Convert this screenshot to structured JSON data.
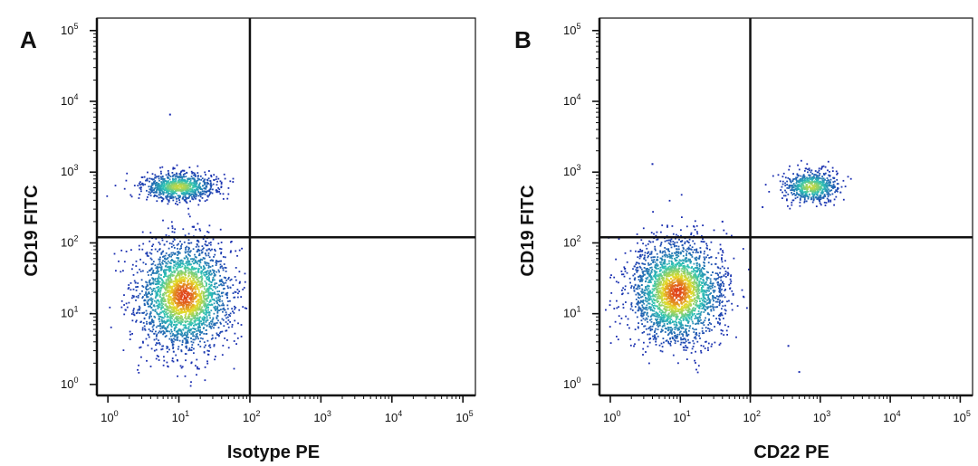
{
  "chart_data": [
    {
      "type": "scatter",
      "panel_label": "A",
      "xlabel": "Isotype PE",
      "ylabel": "CD19 FITC",
      "x_scale": "log",
      "y_scale": "log",
      "xlim": [
        0.7,
        150000
      ],
      "ylim": [
        0.7,
        150000
      ],
      "x_ticks": [
        {
          "base": "10",
          "exp": "0",
          "value": 1
        },
        {
          "base": "10",
          "exp": "1",
          "value": 10
        },
        {
          "base": "10",
          "exp": "2",
          "value": 100
        },
        {
          "base": "10",
          "exp": "3",
          "value": 1000
        },
        {
          "base": "10",
          "exp": "4",
          "value": 10000
        },
        {
          "base": "10",
          "exp": "5",
          "value": 100000
        }
      ],
      "y_ticks": [
        {
          "base": "10",
          "exp": "0",
          "value": 1
        },
        {
          "base": "10",
          "exp": "1",
          "value": 10
        },
        {
          "base": "10",
          "exp": "2",
          "value": 100
        },
        {
          "base": "10",
          "exp": "3",
          "value": 1000
        },
        {
          "base": "10",
          "exp": "4",
          "value": 10000
        },
        {
          "base": "10",
          "exp": "5",
          "value": 100000
        }
      ],
      "quadrant_gate": {
        "x": 100,
        "y": 120
      },
      "populations": [
        {
          "center": [
            12,
            18
          ],
          "spread_log10": [
            0.33,
            0.38
          ],
          "n": 2600
        },
        {
          "center": [
            10,
            620
          ],
          "spread_log10": [
            0.26,
            0.1
          ],
          "n": 850
        }
      ],
      "outliers": [
        [
          7.5,
          6500
        ]
      ]
    },
    {
      "type": "scatter",
      "panel_label": "B",
      "xlabel": "CD22 PE",
      "ylabel": "CD19 FITC",
      "x_scale": "log",
      "y_scale": "log",
      "xlim": [
        0.7,
        150000
      ],
      "ylim": [
        0.7,
        150000
      ],
      "x_ticks": [
        {
          "base": "10",
          "exp": "0",
          "value": 1
        },
        {
          "base": "10",
          "exp": "1",
          "value": 10
        },
        {
          "base": "10",
          "exp": "2",
          "value": 100
        },
        {
          "base": "10",
          "exp": "3",
          "value": 1000
        },
        {
          "base": "10",
          "exp": "4",
          "value": 10000
        },
        {
          "base": "10",
          "exp": "5",
          "value": 100000
        }
      ],
      "y_ticks": [
        {
          "base": "10",
          "exp": "0",
          "value": 1
        },
        {
          "base": "10",
          "exp": "1",
          "value": 10
        },
        {
          "base": "10",
          "exp": "2",
          "value": 100
        },
        {
          "base": "10",
          "exp": "3",
          "value": 1000
        },
        {
          "base": "10",
          "exp": "4",
          "value": 10000
        },
        {
          "base": "10",
          "exp": "5",
          "value": 100000
        }
      ],
      "quadrant_gate": {
        "x": 100,
        "y": 120
      },
      "populations": [
        {
          "center": [
            9,
            20
          ],
          "spread_log10": [
            0.33,
            0.36
          ],
          "n": 2600
        },
        {
          "center": [
            750,
            620
          ],
          "spread_log10": [
            0.2,
            0.11
          ],
          "n": 650
        }
      ],
      "outliers": [
        [
          40,
          200
        ],
        [
          150,
          320
        ],
        [
          4,
          1300
        ],
        [
          350,
          3.5
        ],
        [
          500,
          1.5
        ]
      ]
    }
  ],
  "colors": {
    "axis": "#111111",
    "density_low": "#1a2bb0",
    "density_mid": "#2ec4b6",
    "density_high": "#e0401a"
  }
}
